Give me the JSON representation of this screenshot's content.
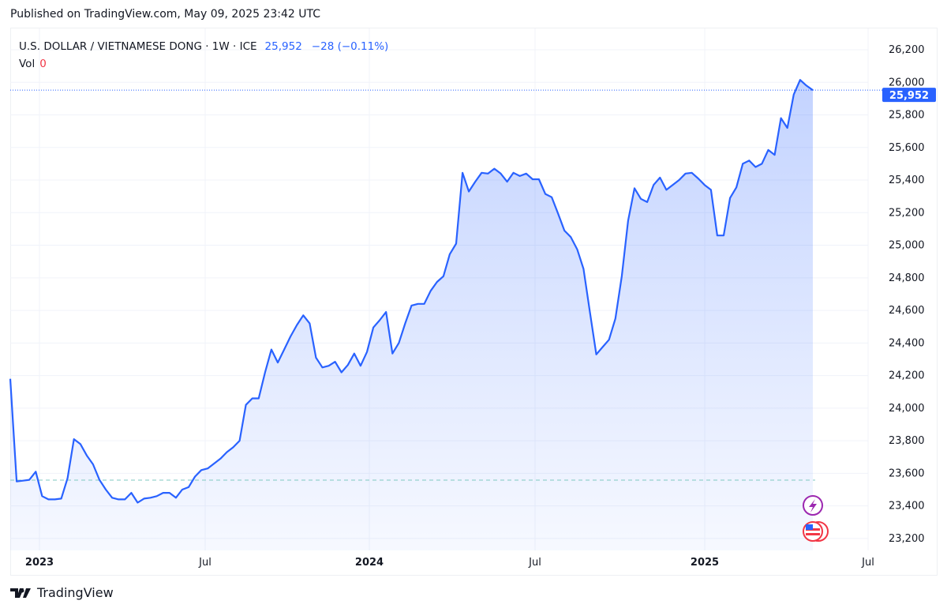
{
  "published": "Published on TradingView.com, May 09, 2025 23:42 UTC",
  "legend": {
    "symbol": "U.S. DOLLAR / VIETNAMESE DONG · 1W · ICE",
    "price": "25,952",
    "change": "−28 (−0.11%)",
    "vol_label": "Vol",
    "vol_value": "0"
  },
  "brand": "TradingView",
  "colors": {
    "line": "#2962ff",
    "fill": "#2962ff",
    "price_label_bg": "#2962ff",
    "text": "#131722"
  },
  "chart_data": {
    "type": "area",
    "interval": "1W",
    "y_ticks": [
      23200,
      23400,
      23600,
      23800,
      24000,
      24200,
      24400,
      24600,
      24800,
      25000,
      25200,
      25400,
      25600,
      25800,
      26000,
      26200
    ],
    "y_tick_labels": [
      "23,200",
      "23,400",
      "23,600",
      "23,800",
      "24,000",
      "24,200",
      "24,400",
      "24,600",
      "24,800",
      "25,000",
      "25,200",
      "25,400",
      "25,600",
      "25,800",
      "26,000",
      "26,200"
    ],
    "ylim": [
      23120,
      26320
    ],
    "x_ticks": [
      {
        "label": "2023",
        "bold": true
      },
      {
        "label": "Jul",
        "bold": false
      },
      {
        "label": "2024",
        "bold": true
      },
      {
        "label": "Jul",
        "bold": false
      },
      {
        "label": "2025",
        "bold": true
      },
      {
        "label": "Jul",
        "bold": false
      }
    ],
    "last_price_label": "25,952",
    "last_price": 25952,
    "baseline": 23558,
    "grid": true,
    "values": [
      24180,
      23550,
      23555,
      23560,
      23610,
      23460,
      23440,
      23440,
      23445,
      23570,
      23810,
      23780,
      23710,
      23655,
      23560,
      23500,
      23450,
      23440,
      23440,
      23480,
      23420,
      23445,
      23450,
      23460,
      23480,
      23480,
      23450,
      23500,
      23515,
      23580,
      23620,
      23630,
      23660,
      23690,
      23730,
      23760,
      23800,
      24020,
      24060,
      24060,
      24220,
      24360,
      24280,
      24360,
      24440,
      24510,
      24570,
      24520,
      24310,
      24250,
      24260,
      24285,
      24220,
      24265,
      24335,
      24260,
      24345,
      24495,
      24540,
      24590,
      24335,
      24400,
      24520,
      24630,
      24640,
      24640,
      24720,
      24775,
      24810,
      24945,
      25010,
      25445,
      25330,
      25390,
      25445,
      25440,
      25470,
      25440,
      25390,
      25445,
      25425,
      25440,
      25405,
      25405,
      25315,
      25295,
      25195,
      25090,
      25050,
      24975,
      24855,
      24590,
      24330,
      24375,
      24420,
      24550,
      24810,
      25150,
      25350,
      25285,
      25265,
      25370,
      25415,
      25340,
      25370,
      25400,
      25440,
      25445,
      25410,
      25370,
      25340,
      25060,
      25060,
      25290,
      25355,
      25500,
      25520,
      25480,
      25500,
      25585,
      25555,
      25780,
      25720,
      25925,
      26015,
      25980,
      25952
    ]
  }
}
